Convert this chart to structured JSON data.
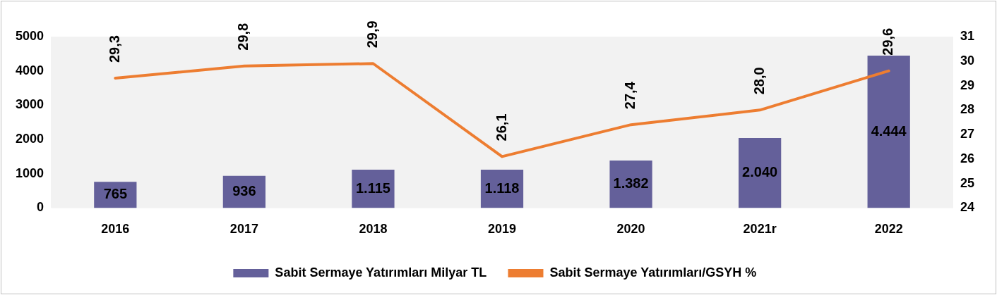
{
  "chart_data": {
    "type": "bar",
    "categories": [
      "2016",
      "2017",
      "2018",
      "2019",
      "2020",
      "2021r",
      "2022"
    ],
    "series": [
      {
        "name": "Sabit Sermaye Yatırımları Milyar TL",
        "color": "#64609a",
        "values": [
          765,
          936,
          1115,
          1118,
          1382,
          2040,
          4444
        ],
        "value_labels": [
          "765",
          "936",
          "1.115",
          "1.118",
          "1.382",
          "2.040",
          "4.444"
        ]
      },
      {
        "name": "Sabit Sermaye Yatırımları/GSYH %",
        "type": "line",
        "axis": "y2",
        "color": "#ed7d31",
        "values": [
          29.3,
          29.8,
          29.9,
          26.1,
          27.4,
          28.0,
          29.6
        ],
        "value_labels": [
          "29,3",
          "29,8",
          "29,9",
          "26,1",
          "27,4",
          "28,0",
          "29,6"
        ]
      }
    ],
    "ylim": [
      0,
      5000
    ],
    "yticks": [
      0,
      1000,
      2000,
      3000,
      4000,
      5000
    ],
    "y2lim": [
      24,
      31
    ],
    "y2ticks": [
      24,
      25,
      26,
      27,
      28,
      29,
      30,
      31
    ],
    "grid": false,
    "legend": "bottom",
    "marker": "none",
    "line_style": "solid"
  }
}
